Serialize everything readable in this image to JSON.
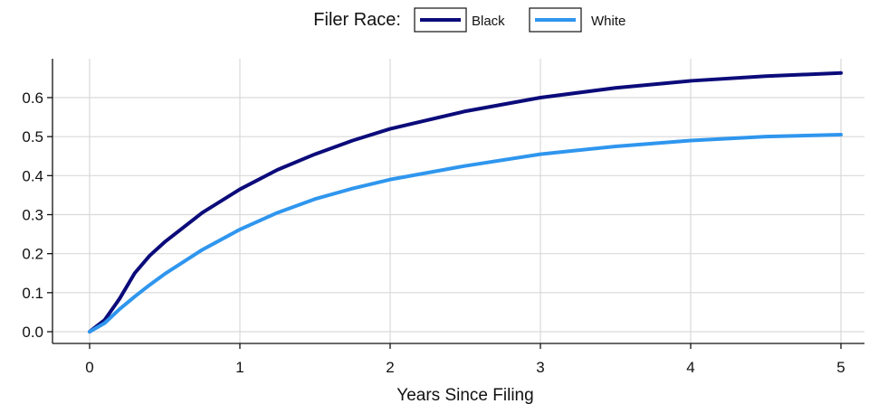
{
  "chart_data": {
    "type": "line",
    "title": "",
    "xlabel": "Years Since Filing",
    "ylabel": "",
    "xlim": [
      -0.25,
      5.2
    ],
    "ylim": [
      -0.02,
      0.7
    ],
    "x_ticks": [
      0,
      1,
      2,
      3,
      4,
      5
    ],
    "x_tick_labels": [
      "0",
      "1",
      "2",
      "3",
      "4",
      "5"
    ],
    "y_ticks": [
      0.0,
      0.1,
      0.2,
      0.3,
      0.4,
      0.5,
      0.6
    ],
    "y_tick_labels": [
      "0.0",
      "0.1",
      "0.2",
      "0.3",
      "0.4",
      "0.5",
      "0.6"
    ],
    "grid": true,
    "legend": {
      "title": "Filer Race:",
      "placement": "top-center"
    },
    "x": [
      0,
      0.1,
      0.2,
      0.3,
      0.4,
      0.5,
      0.75,
      1,
      1.25,
      1.5,
      1.75,
      2,
      2.5,
      3,
      3.5,
      4,
      4.5,
      5
    ],
    "series": [
      {
        "name": "Black",
        "color": "#0b0b7a",
        "values": [
          0,
          0.03,
          0.085,
          0.15,
          0.195,
          0.23,
          0.305,
          0.365,
          0.415,
          0.455,
          0.49,
          0.52,
          0.565,
          0.6,
          0.625,
          0.643,
          0.655,
          0.663
        ]
      },
      {
        "name": "White",
        "color": "#2f96ee",
        "values": [
          0,
          0.022,
          0.058,
          0.09,
          0.12,
          0.148,
          0.21,
          0.262,
          0.305,
          0.34,
          0.367,
          0.39,
          0.425,
          0.455,
          0.475,
          0.49,
          0.5,
          0.505
        ]
      }
    ]
  }
}
